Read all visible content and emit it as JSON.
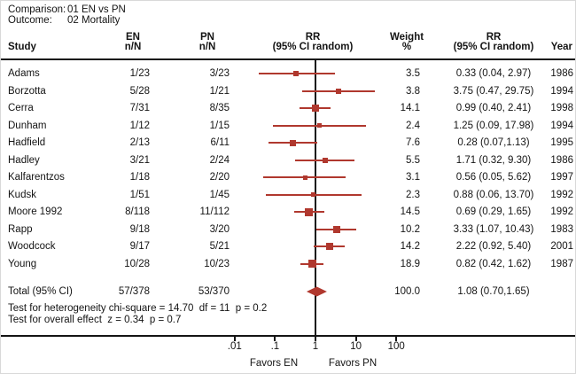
{
  "meta": {
    "comparison_label": "Comparison:",
    "comparison_value": "01 EN vs PN",
    "outcome_label": "Outcome:",
    "outcome_value": "02 Mortality"
  },
  "columns": {
    "study": "Study",
    "en_line1": "EN",
    "en_line2": "n/N",
    "pn_line1": "PN",
    "pn_line2": "n/N",
    "rr_plot_line1": "RR",
    "rr_plot_line2": "(95% CI random)",
    "weight_line1": "Weight",
    "weight_line2": "%",
    "rr_text_line1": "RR",
    "rr_text_line2": "(95% CI random)",
    "year": "Year"
  },
  "chart_data": {
    "type": "forest",
    "title": "Comparison: 01 EN vs PN — Outcome: 02 Mortality",
    "x_axis": {
      "scale": "log",
      "ticks": [
        0.01,
        0.1,
        1,
        10,
        100
      ],
      "tick_labels": [
        ".01",
        ".1",
        "1",
        "10",
        "100"
      ],
      "reference_line": 1,
      "left_label": "Favors EN",
      "right_label": "Favors PN"
    },
    "studies": [
      {
        "study": "Adams",
        "en": "1/23",
        "pn": "3/23",
        "rr": 0.33,
        "lo": 0.04,
        "hi": 2.97,
        "weight": "3.5",
        "rr_text": "0.33 (0.04, 2.97)",
        "year": "1986"
      },
      {
        "study": "Borzotta",
        "en": "5/28",
        "pn": "1/21",
        "rr": 3.75,
        "lo": 0.47,
        "hi": 29.75,
        "weight": "3.8",
        "rr_text": "3.75 (0.47, 29.75)",
        "year": "1994"
      },
      {
        "study": "Cerra",
        "en": "7/31",
        "pn": "8/35",
        "rr": 0.99,
        "lo": 0.4,
        "hi": 2.41,
        "weight": "14.1",
        "rr_text": "0.99 (0.40, 2.41)",
        "year": "1998"
      },
      {
        "study": "Dunham",
        "en": "1/12",
        "pn": "1/15",
        "rr": 1.25,
        "lo": 0.09,
        "hi": 17.98,
        "weight": "2.4",
        "rr_text": "1.25 (0.09, 17.98)",
        "year": "1994"
      },
      {
        "study": "Hadfield",
        "en": "2/13",
        "pn": "6/11",
        "rr": 0.28,
        "lo": 0.07,
        "hi": 1.13,
        "weight": "7.6",
        "rr_text": "0.28 (0.07,1.13)",
        "year": "1995"
      },
      {
        "study": "Hadley",
        "en": "3/21",
        "pn": "2/24",
        "rr": 1.71,
        "lo": 0.32,
        "hi": 9.3,
        "weight": "5.5",
        "rr_text": "1.71 (0.32, 9.30)",
        "year": "1986"
      },
      {
        "study": "Kalfarentzos",
        "en": "1/18",
        "pn": "2/20",
        "rr": 0.56,
        "lo": 0.05,
        "hi": 5.62,
        "weight": "3.1",
        "rr_text": "0.56 (0.05, 5.62)",
        "year": "1997"
      },
      {
        "study": "Kudsk",
        "en": "1/51",
        "pn": "1/45",
        "rr": 0.88,
        "lo": 0.06,
        "hi": 13.7,
        "weight": "2.3",
        "rr_text": "0.88 (0.06, 13.70)",
        "year": "1992"
      },
      {
        "study": "Moore 1992",
        "en": "8/118",
        "pn": "11/112",
        "rr": 0.69,
        "lo": 0.29,
        "hi": 1.65,
        "weight": "14.5",
        "rr_text": "0.69 (0.29, 1.65)",
        "year": "1992"
      },
      {
        "study": "Rapp",
        "en": "9/18",
        "pn": "3/20",
        "rr": 3.33,
        "lo": 1.07,
        "hi": 10.43,
        "weight": "10.2",
        "rr_text": "3.33 (1.07, 10.43)",
        "year": "1983"
      },
      {
        "study": "Woodcock",
        "en": "9/17",
        "pn": "5/21",
        "rr": 2.22,
        "lo": 0.92,
        "hi": 5.4,
        "weight": "14.2",
        "rr_text": "2.22 (0.92, 5.40)",
        "year": "2001"
      },
      {
        "study": "Young",
        "en": "10/28",
        "pn": "10/23",
        "rr": 0.82,
        "lo": 0.42,
        "hi": 1.62,
        "weight": "18.9",
        "rr_text": "0.82 (0.42, 1.62)",
        "year": "1987"
      }
    ],
    "total": {
      "label": "Total (95% CI)",
      "en": "57/378",
      "pn": "53/370",
      "rr": 1.08,
      "lo": 0.7,
      "hi": 1.65,
      "weight": "100.0",
      "rr_text": "1.08 (0.70,1.65)"
    },
    "footnotes": [
      "Test for heterogeneity chi-square = 14.70  df = 11  p = 0.2",
      "Test for overall effect  z = 0.34  p = 0.7"
    ]
  },
  "colors": {
    "marker": "#b0382e",
    "ci_line": "#b0382e",
    "diamond": "#b0382e",
    "axis": "#141414"
  }
}
